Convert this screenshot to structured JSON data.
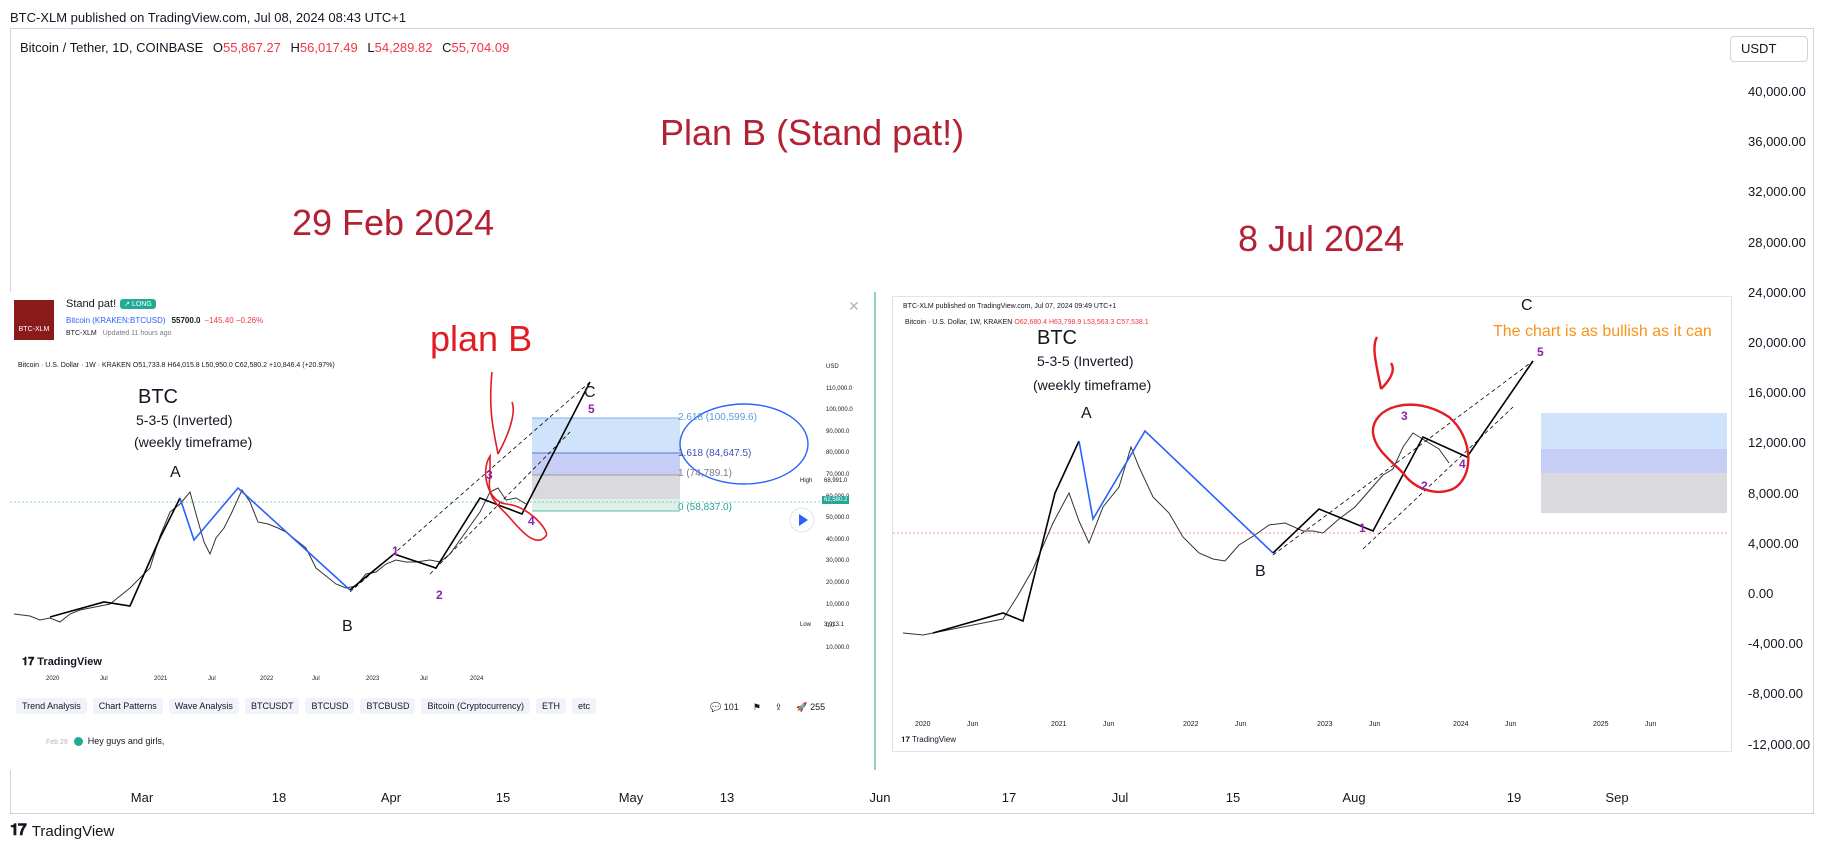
{
  "header": {
    "publisher": "BTC-XLM published on TradingView.com, Jul 08, 2024 08:43 UTC+1"
  },
  "symbol": {
    "name": "Bitcoin / Tether, 1D, COINBASE",
    "o_label": "O",
    "o": "55,867.27",
    "h_label": "H",
    "h": "56,017.49",
    "l_label": "L",
    "l": "54,289.82",
    "c_label": "C",
    "c": "55,704.09"
  },
  "currency": "USDT",
  "annotations": {
    "plan_title": "Plan B  (Stand pat!)",
    "left_date": "29 Feb 2024",
    "right_date": "8 Jul 2024"
  },
  "left_shot": {
    "avatar_text": "BTC-XLM",
    "title": "Stand pat!",
    "badge": "↗ LONG",
    "ticker": "Bitcoin (KRAKEN:BTCUSD)",
    "price": "55700.0",
    "change": "−145.40  −0.26%",
    "author": "BTC-XLM",
    "updated": "Updated 11 hours ago",
    "close": "✕",
    "ohlc": "Bitcoin · U.S. Dollar · 1W · KRAKEN  O51,733.8 H64,015.8 L50,950.0 C62,580.2 +10,846.4 (+20.97%)",
    "plan": "plan B",
    "btc": "BTC",
    "pattern": "5-3-5 (Inverted)",
    "timeframe": "(weekly timeframe)",
    "fib": [
      "2.618 (100,599.6)",
      "1.618 (84,647.5)",
      "1 (74,789.1)",
      "0 (58,837.0)"
    ],
    "waves": {
      "A": "A",
      "B": "B",
      "C": "C",
      "w1": "1",
      "w2": "2",
      "w3": "3",
      "w4": "4",
      "w5": "5"
    },
    "y_ticks": [
      "USD",
      "110,000.0",
      "100,000.0",
      "90,000.0",
      "80,000.0",
      "70,000.0",
      "60,000.0",
      "50,000.0",
      "40,000.0",
      "30,000.0",
      "20,000.0",
      "10,000.0",
      "0.0",
      "10,000.0"
    ],
    "high_label": "High",
    "high_value": "68,991.0",
    "last_value": "62,580.2",
    "low_label": "Low",
    "low_value": "3,913.1",
    "x_ticks": [
      "2020",
      "Jul",
      "2021",
      "Jul",
      "2022",
      "Jul",
      "2023",
      "Jul",
      "2024"
    ],
    "tv_brand": "TradingView",
    "tags": [
      "Trend Analysis",
      "Chart Patterns",
      "Wave Analysis",
      "BTCUSDT",
      "BTCUSD",
      "BTCBUSD",
      "Bitcoin (Cryptocurrency)",
      "ETH",
      "etc"
    ],
    "comments_count": "101",
    "boosts": "255",
    "comment_date": "Feb 29",
    "comment_text": "Hey guys and girls,"
  },
  "right_shot": {
    "header": "BTC-XLM published on TradingView.com, Jul 07, 2024 09:49 UTC+1",
    "ohlc_prefix": "Bitcoin · U.S. Dollar, 1W, KRAKEN  ",
    "ohlc_values": "O62,680.4 H63,798.9 L53,563.3 C57,538.1",
    "note": "The chart is as bullish as it can",
    "btc": "BTC",
    "pattern": "5-3-5 (Inverted)",
    "timeframe": "(weekly timeframe)",
    "waves": {
      "A": "A",
      "B": "B",
      "C": "C",
      "w1": "1",
      "w2": "2",
      "w3": "3",
      "w4": "4",
      "w5": "5"
    },
    "x_ticks": [
      "2020",
      "Jun",
      "2021",
      "Jun",
      "2022",
      "Jun",
      "2023",
      "Jun",
      "2024",
      "Jun",
      "2025",
      "Jun"
    ],
    "tv_brand": "TradingView"
  },
  "chart_data": {
    "type": "line",
    "title": "",
    "ylabel": "USDT",
    "y_ticks": [
      "40,000.00",
      "36,000.00",
      "32,000.00",
      "28,000.00",
      "24,000.00",
      "20,000.00",
      "16,000.00",
      "12,000.00",
      "8,000.00",
      "4,000.00",
      "0.00",
      "-4,000.00",
      "-8,000.00",
      "-12,000.00"
    ],
    "x_ticks": [
      "Mar",
      "18",
      "Apr",
      "15",
      "May",
      "13",
      "Jun",
      "17",
      "Jul",
      "15",
      "Aug",
      "19",
      "Sep"
    ],
    "ylim": [
      -13000,
      42000
    ],
    "grid": false,
    "series": []
  },
  "brand": "TradingView"
}
